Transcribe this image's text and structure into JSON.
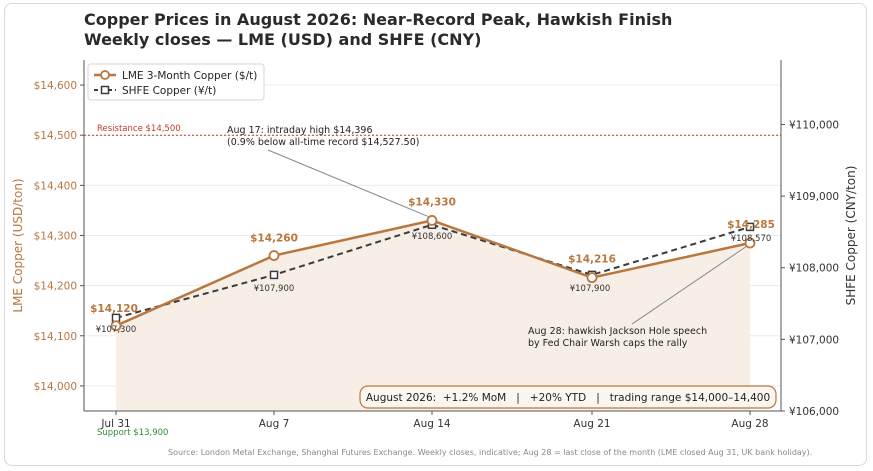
{
  "title": "Copper Prices in August 2026: Near-Record Peak, Hawkish Finish",
  "subtitle": "Weekly closes — LME (USD) and SHFE (CNY)",
  "source": "Source: London Metal Exchange, Shanghai Futures Exchange. Weekly closes, indicative; Aug 28 = last close of the month (LME closed Aug 31, UK bank holiday).",
  "colors": {
    "lme": "#b9773f",
    "shfe": "#3c3c3c",
    "resistance": "#c0392b",
    "support": "#2e8b3d",
    "area": "#f7efe6"
  },
  "chart_data": {
    "type": "line",
    "categories": [
      "Jul 31",
      "Aug 7",
      "Aug 14",
      "Aug 21",
      "Aug 28"
    ],
    "ylabel_left": "LME Copper (USD/ton)",
    "ylabel_right": "SHFE Copper (CNY/ton)",
    "ylim_left": [
      13950,
      14650
    ],
    "ylim_right": [
      106000,
      110900
    ],
    "yticks_left": [
      14000,
      14100,
      14200,
      14300,
      14400,
      14500,
      14600
    ],
    "yticks_left_labels": [
      "$14,000",
      "$14,100",
      "$14,200",
      "$14,300",
      "$14,400",
      "$14,500",
      "$14,600"
    ],
    "yticks_right": [
      106000,
      107000,
      108000,
      109000,
      110000
    ],
    "yticks_right_labels": [
      "¥106,000",
      "¥107,000",
      "¥108,000",
      "¥109,000",
      "¥110,000"
    ],
    "series": [
      {
        "name": "LME 3-Month Copper ($/t)",
        "axis": "left",
        "values": [
          14120,
          14260,
          14330,
          14216,
          14285
        ],
        "labels": [
          "$14,120",
          "$14,260",
          "$14,330",
          "$14,216",
          "$14,285"
        ]
      },
      {
        "name": "SHFE Copper (¥/t)",
        "axis": "right",
        "values": [
          107300,
          107900,
          108600,
          107900,
          108570
        ],
        "labels": [
          "¥107,300",
          "¥107,900",
          "¥108,600",
          "¥107,900",
          "¥108,570"
        ]
      }
    ],
    "reference_lines": [
      {
        "label": "Resistance $14,500",
        "value": 14500
      },
      {
        "label": "Support $13,900",
        "value": 13900
      }
    ],
    "annotations": [
      {
        "lines": [
          "Aug 17: intraday high $14,396",
          "(0.9% below all-time record $14,527.50)"
        ],
        "target_index": 2
      },
      {
        "lines": [
          "Aug 28: hawkish Jackson Hole speech",
          "by Fed Chair Warsh caps the rally"
        ],
        "target_index": 4
      }
    ],
    "summary": "August 2026:  +1.2% MoM   |   +20% YTD   |   trading range $14,000–14,400",
    "legend_position": "top-left",
    "grid": "horizontal"
  }
}
